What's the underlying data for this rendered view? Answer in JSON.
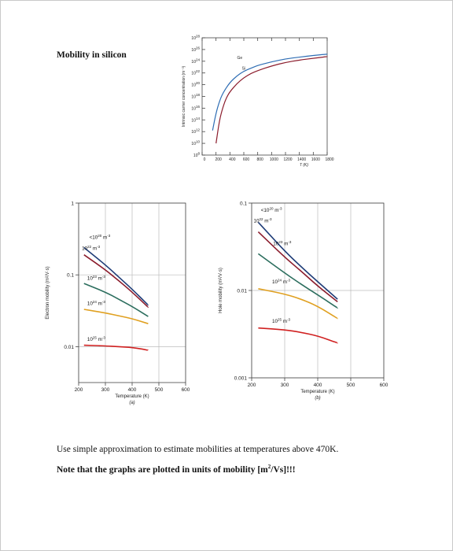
{
  "heading": "Mobility in silicon",
  "footer_line1": "Use simple approximation to estimate mobilities at temperatures above 470K.",
  "footer_line2_text": "Note that the graphs are plotted in units of mobility [m",
  "footer_line2_sup": "2",
  "footer_line2_end": "/Vs]!!!",
  "chart_data": [
    {
      "type": "line",
      "id": "intrinsic",
      "title": "",
      "xlabel": "T (K)",
      "ylabel": "Intrinsic carrier concentration (m⁻³)",
      "x_ticks": [
        "0",
        "200",
        "400",
        "600",
        "800",
        "1000",
        "1200",
        "1400",
        "1600",
        "1800"
      ],
      "y_ticks": [
        "10^8",
        "10^10",
        "10^12",
        "10^14",
        "10^16",
        "10^18",
        "10^20",
        "10^22",
        "10^24",
        "10^26",
        "10^28"
      ],
      "xlim": [
        0,
        1800
      ],
      "ylim_log10": [
        8,
        28
      ],
      "series": [
        {
          "name": "Ge",
          "color": "#2e6db4",
          "x": [
            150,
            200,
            250,
            300,
            400,
            500,
            600,
            700,
            800,
            1000,
            1200,
            1400,
            1600,
            1800
          ],
          "log10_y": [
            12.2,
            15.2,
            17.2,
            18.6,
            20.4,
            21.5,
            22.3,
            22.8,
            23.3,
            23.9,
            24.4,
            24.7,
            25.0,
            25.2
          ]
        },
        {
          "name": "Si",
          "color": "#8b1c2c",
          "x": [
            200,
            250,
            300,
            350,
            400,
            500,
            600,
            700,
            800,
            1000,
            1200,
            1400,
            1600,
            1800
          ],
          "log10_y": [
            10.0,
            14.0,
            16.2,
            17.8,
            18.8,
            20.2,
            21.2,
            21.9,
            22.4,
            23.2,
            23.8,
            24.2,
            24.5,
            24.8
          ]
        }
      ]
    },
    {
      "type": "line",
      "id": "electron",
      "title": "",
      "xlabel": "Temperature (K)",
      "ylabel": "Electron mobility (m²/V·s)",
      "caption": "(a)",
      "x_ticks": [
        "200",
        "300",
        "400",
        "500",
        "600"
      ],
      "y_ticks": [
        "0.01",
        "0.1",
        "1"
      ],
      "xlim": [
        200,
        600
      ],
      "ylim_log10": [
        -2.5,
        0
      ],
      "series": [
        {
          "name": "10^20 m^-3",
          "color": "#1f3d78",
          "x": [
            220,
            300,
            350,
            400,
            460
          ],
          "log10_y": [
            -0.62,
            -0.86,
            -1.03,
            -1.2,
            -1.42
          ]
        },
        {
          "name": "10^22 m^-3",
          "color": "#8b1c2c",
          "x": [
            220,
            300,
            350,
            400,
            460
          ],
          "log10_y": [
            -0.72,
            -0.93,
            -1.08,
            -1.24,
            -1.45
          ]
        },
        {
          "name": "10^23 m^-3",
          "color": "#2c6e5e",
          "x": [
            220,
            300,
            350,
            400,
            460
          ],
          "log10_y": [
            -1.12,
            -1.24,
            -1.34,
            -1.44,
            -1.58
          ]
        },
        {
          "name": "10^24 m^-3",
          "color": "#e0a020",
          "x": [
            220,
            300,
            350,
            400,
            460
          ],
          "log10_y": [
            -1.48,
            -1.53,
            -1.57,
            -1.61,
            -1.68
          ]
        },
        {
          "name": "10^25 m^-3",
          "color": "#d02020",
          "x": [
            220,
            300,
            350,
            400,
            460
          ],
          "log10_y": [
            -1.98,
            -1.99,
            -2.0,
            -2.01,
            -2.05
          ]
        }
      ]
    },
    {
      "type": "line",
      "id": "hole",
      "title": "",
      "xlabel": "Temperature (K)",
      "ylabel": "Hole mobility (m²/V·s)",
      "caption": "(b)",
      "x_ticks": [
        "200",
        "300",
        "400",
        "500",
        "600"
      ],
      "y_ticks": [
        "0.001",
        "0.01",
        "0.1"
      ],
      "xlim": [
        200,
        600
      ],
      "ylim_log10": [
        -3.0,
        -1.0
      ],
      "series": [
        {
          "name": "10^20 m^-3",
          "color": "#1f3d78",
          "x": [
            220,
            300,
            350,
            400,
            460
          ],
          "log10_y": [
            -1.22,
            -1.55,
            -1.73,
            -1.9,
            -2.1
          ]
        },
        {
          "name": "10^22 m^-3",
          "color": "#8b1c2c",
          "x": [
            220,
            300,
            350,
            400,
            460
          ],
          "log10_y": [
            -1.33,
            -1.62,
            -1.78,
            -1.95,
            -2.13
          ]
        },
        {
          "name": "10^23 m^-3",
          "color": "#2c6e5e",
          "x": [
            220,
            300,
            350,
            400,
            460
          ],
          "log10_y": [
            -1.58,
            -1.8,
            -1.93,
            -2.05,
            -2.2
          ]
        },
        {
          "name": "10^24 m^-3",
          "color": "#e0a020",
          "x": [
            220,
            300,
            350,
            400,
            460
          ],
          "log10_y": [
            -1.98,
            -2.04,
            -2.1,
            -2.18,
            -2.32
          ]
        },
        {
          "name": "10^25 m^-3",
          "color": "#d02020",
          "x": [
            220,
            300,
            350,
            400,
            460
          ],
          "log10_y": [
            -2.43,
            -2.45,
            -2.48,
            -2.52,
            -2.6
          ]
        }
      ]
    }
  ]
}
